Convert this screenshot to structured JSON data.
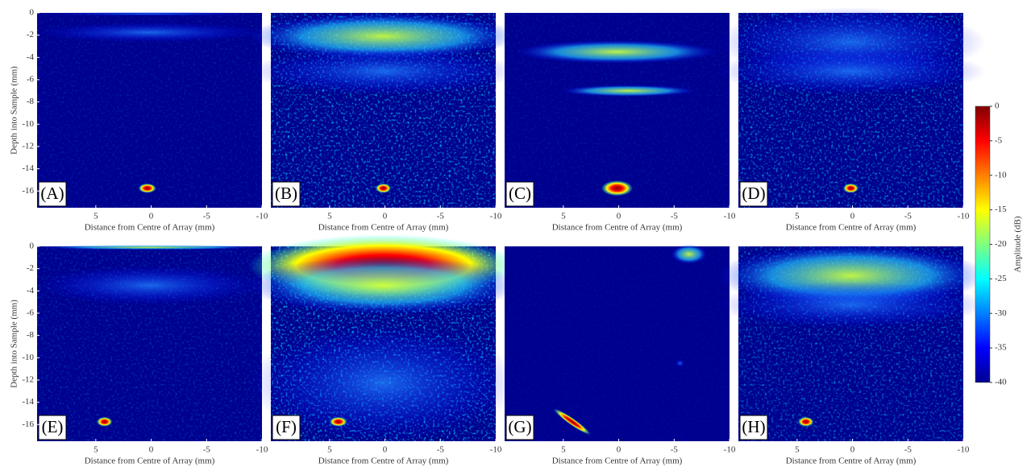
{
  "chart_data": [
    {
      "type": "heatmap",
      "label": "(A)",
      "xlabel": "Distance from Centre of Array (mm)",
      "ylabel": "Depth into Sample (mm)",
      "xlim": [
        10.3,
        -10
      ],
      "xticks": [
        5,
        0,
        -5,
        -10
      ],
      "ylim": [
        -17.5,
        0
      ],
      "yticks": [
        0,
        -2,
        -4,
        -6,
        -8,
        -10,
        -12,
        -14,
        -16
      ]
    },
    {
      "type": "heatmap",
      "label": "(B)",
      "xlabel": "Distance from Centre of Array (mm)",
      "xlim": [
        10.3,
        -10
      ],
      "xticks": [
        5,
        0,
        -5,
        -10
      ]
    },
    {
      "type": "heatmap",
      "label": "(C)",
      "xlabel": "Distance from Centre of Array (mm)",
      "xlim": [
        10.3,
        -10
      ],
      "xticks": [
        5,
        0,
        -5,
        -10
      ]
    },
    {
      "type": "heatmap",
      "label": "(D)",
      "xlabel": "Distance from Centre of Array (mm)",
      "xlim": [
        10.3,
        -10
      ],
      "xticks": [
        5,
        0,
        -5,
        -10
      ]
    },
    {
      "type": "heatmap",
      "label": "(E)",
      "xlabel": "Distance from Centre of Array (mm)",
      "ylabel": "Depth into Sample (mm)",
      "xlim": [
        10.3,
        -10
      ],
      "xticks": [
        5,
        0,
        -5,
        -10
      ],
      "ylim": [
        -17.5,
        0
      ],
      "yticks": [
        0,
        -2,
        -4,
        -6,
        -8,
        -10,
        -12,
        -14,
        -16
      ]
    },
    {
      "type": "heatmap",
      "label": "(F)",
      "xlabel": "Distance from Centre of Array (mm)",
      "xlim": [
        10.3,
        -10
      ],
      "xticks": [
        5,
        0,
        -5,
        -10
      ]
    },
    {
      "type": "heatmap",
      "label": "(G)",
      "xlabel": "Distance from Centre of Array (mm)",
      "xlim": [
        10.3,
        -10
      ],
      "xticks": [
        5,
        0,
        -5,
        -10
      ]
    },
    {
      "type": "heatmap",
      "label": "(H)",
      "xlabel": "Distance from Centre of Array (mm)",
      "xlim": [
        10.3,
        -10
      ],
      "xticks": [
        5,
        0,
        -5,
        -10
      ]
    }
  ],
  "colorbar": {
    "label": "Amplitude (dB)",
    "clim": [
      -40,
      0
    ],
    "ticks": [
      0,
      -5,
      -10,
      -15,
      -20,
      -25,
      -30,
      -35,
      -40
    ]
  }
}
